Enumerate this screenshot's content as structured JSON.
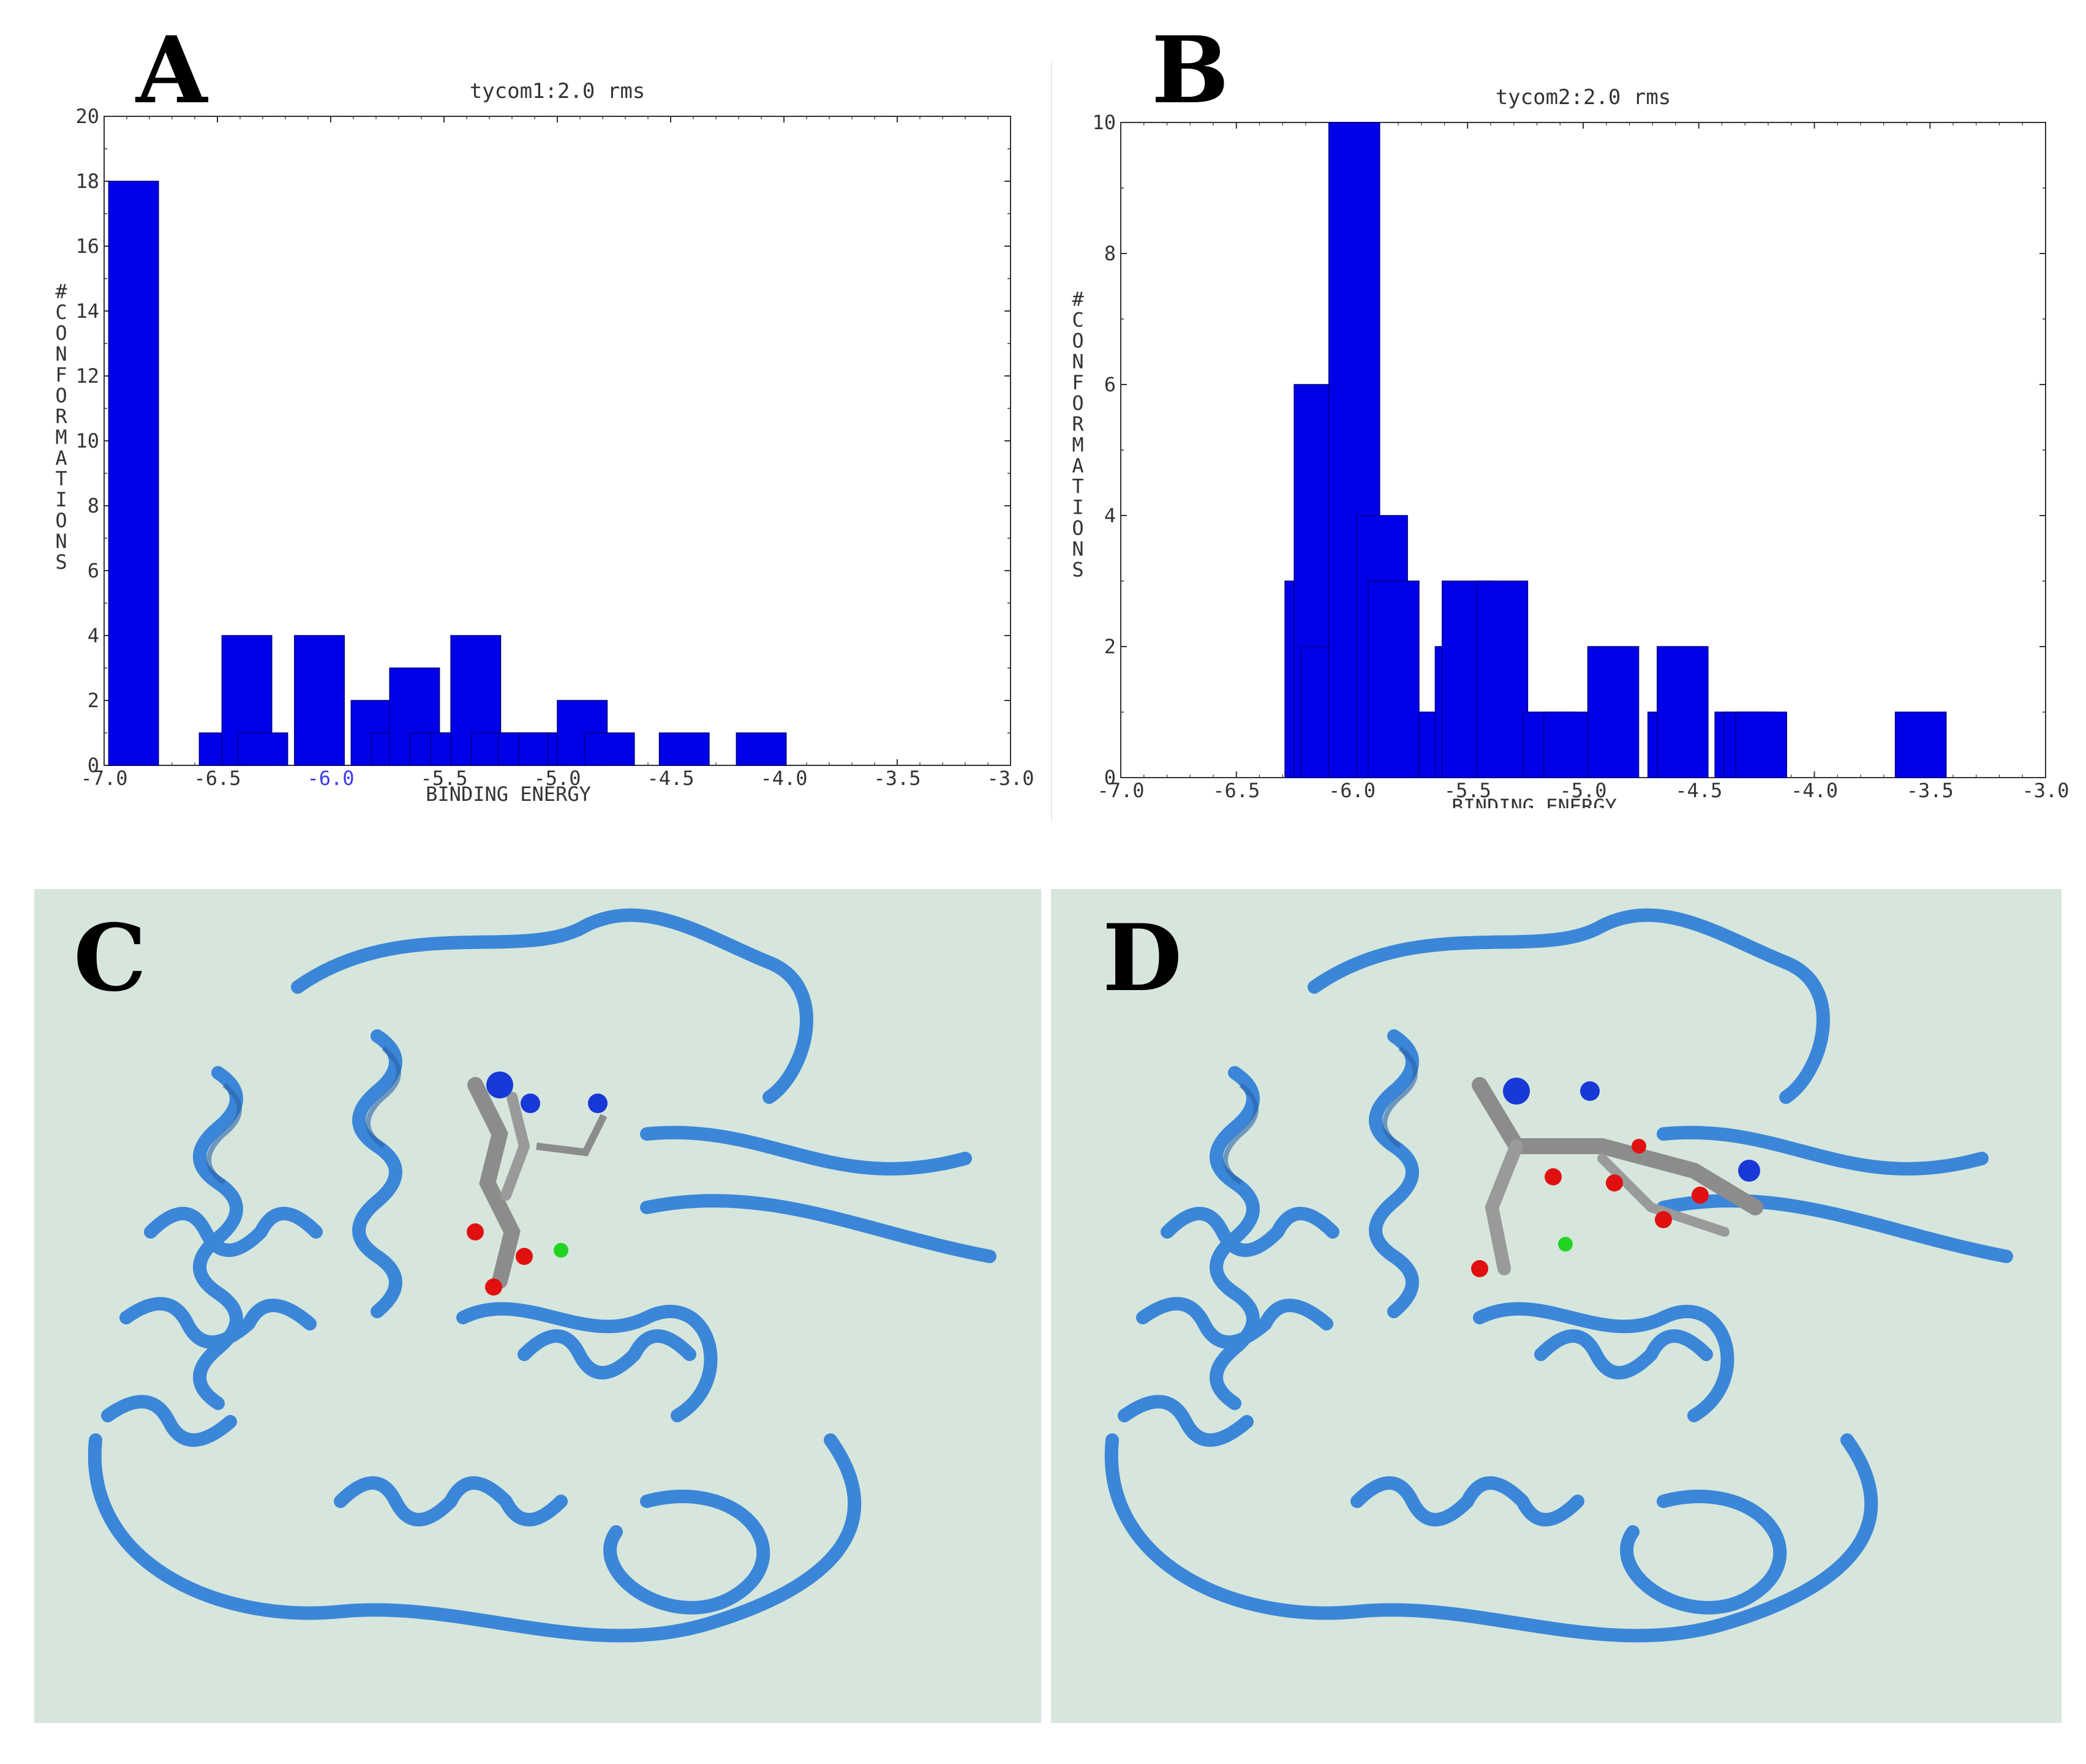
{
  "panels": {
    "A": "A",
    "B": "B",
    "C": "C",
    "D": "D"
  },
  "colors": {
    "bar": "#0000e8",
    "ribbon": "#3b86d8",
    "ribbon_dark": "#2a63a8",
    "background_protein": "#d6e6dc",
    "oxygen": "#e01010",
    "nitrogen": "#1838d8",
    "carbon": "#8c8c8c",
    "ion": "#22d422"
  },
  "chart_data": [
    {
      "id": "A",
      "type": "bar",
      "title": "tycom1:2.0 rms",
      "xlabel": "BINDING ENERGY",
      "ylabel": "#CONFORMATIONS",
      "xlim": [
        -7.0,
        -3.0
      ],
      "ylim": [
        0,
        20
      ],
      "xticks": [
        "-7.0",
        "-6.5",
        "-6.0",
        "-5.5",
        "-5.0",
        "-4.5",
        "-4.0",
        "-3.5",
        "-3.0"
      ],
      "yticks": [
        "0",
        "2",
        "4",
        "6",
        "8",
        "10",
        "12",
        "14",
        "16",
        "18",
        "20"
      ],
      "highlight_xtick": "-6.0",
      "bars": [
        {
          "x": -6.87,
          "y": 18
        },
        {
          "x": -6.47,
          "y": 1
        },
        {
          "x": -6.37,
          "y": 4
        },
        {
          "x": -6.3,
          "y": 1
        },
        {
          "x": -6.05,
          "y": 4
        },
        {
          "x": -5.8,
          "y": 2
        },
        {
          "x": -5.71,
          "y": 1
        },
        {
          "x": -5.63,
          "y": 3
        },
        {
          "x": -5.54,
          "y": 1
        },
        {
          "x": -5.45,
          "y": 1
        },
        {
          "x": -5.36,
          "y": 4
        },
        {
          "x": -5.27,
          "y": 1
        },
        {
          "x": -5.15,
          "y": 1
        },
        {
          "x": -5.06,
          "y": 1
        },
        {
          "x": -4.93,
          "y": 1
        },
        {
          "x": -4.89,
          "y": 2
        },
        {
          "x": -4.77,
          "y": 1
        },
        {
          "x": -4.44,
          "y": 1
        },
        {
          "x": -4.1,
          "y": 1
        }
      ]
    },
    {
      "id": "B",
      "type": "bar",
      "title": "tycom2:2.0 rms",
      "xlabel": "BINDING ENERGY",
      "ylabel": "#CONFORMATIONS",
      "xlim": [
        -7.0,
        -3.0
      ],
      "ylim": [
        0,
        10
      ],
      "xticks": [
        "-7.0",
        "-6.5",
        "-6.0",
        "-5.5",
        "-5.0",
        "-4.5",
        "-4.0",
        "-3.5",
        "-3.0"
      ],
      "yticks": [
        "0",
        "2",
        "4",
        "6",
        "8",
        "10"
      ],
      "highlight_xtick": "",
      "bars": [
        {
          "x": -6.18,
          "y": 3
        },
        {
          "x": -6.14,
          "y": 6
        },
        {
          "x": -6.11,
          "y": 2
        },
        {
          "x": -5.99,
          "y": 10
        },
        {
          "x": -5.87,
          "y": 4
        },
        {
          "x": -5.82,
          "y": 3
        },
        {
          "x": -5.6,
          "y": 1
        },
        {
          "x": -5.53,
          "y": 2
        },
        {
          "x": -5.5,
          "y": 3
        },
        {
          "x": -5.35,
          "y": 3
        },
        {
          "x": -5.15,
          "y": 1
        },
        {
          "x": -5.06,
          "y": 1
        },
        {
          "x": -4.87,
          "y": 2
        },
        {
          "x": -4.61,
          "y": 1
        },
        {
          "x": -4.57,
          "y": 2
        },
        {
          "x": -4.32,
          "y": 1
        },
        {
          "x": -4.28,
          "y": 1
        },
        {
          "x": -4.23,
          "y": 1
        },
        {
          "x": -3.54,
          "y": 1
        }
      ]
    }
  ]
}
